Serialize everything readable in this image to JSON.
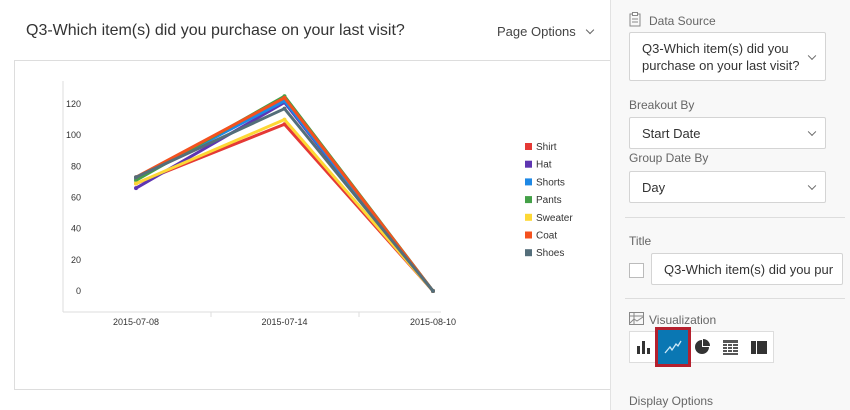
{
  "header": {
    "title": "Q3-Which item(s) did you purchase on your last visit?",
    "page_options": "Page Options"
  },
  "panel": {
    "data_source_label": "Data Source",
    "data_source_value_line1": "Q3-Which item(s) did you",
    "data_source_value_line2": "purchase on your last visit?",
    "breakout_label": "Breakout By",
    "breakout_value": "Start Date",
    "group_date_label": "Group Date By",
    "group_date_value": "Day",
    "title_label": "Title",
    "title_value": "Q3-Which item(s) did you pur",
    "title_checked": false,
    "visualization_label": "Visualization",
    "visualization_options": [
      "bar-chart-icon",
      "line-chart-icon",
      "pie-chart-icon",
      "table-icon",
      "gauge-icon"
    ],
    "visualization_selected": "line-chart-icon",
    "display_options_label": "Display Options",
    "accent": "#0a77b3"
  },
  "chart_data": {
    "type": "line",
    "categories": [
      "2015-07-08",
      "2015-07-14",
      "2015-08-10"
    ],
    "ylim": [
      0,
      130
    ],
    "yticks": [
      0,
      20,
      40,
      60,
      80,
      100,
      120
    ],
    "grid": false,
    "legend": "right",
    "series": [
      {
        "name": "Shirt",
        "color": "#e53935",
        "values": [
          69,
          107,
          0
        ]
      },
      {
        "name": "Hat",
        "color": "#5e35b1",
        "values": [
          66,
          121,
          0
        ]
      },
      {
        "name": "Shorts",
        "color": "#1e88e5",
        "values": [
          72,
          122,
          0
        ]
      },
      {
        "name": "Pants",
        "color": "#43a047",
        "values": [
          71,
          125,
          0
        ]
      },
      {
        "name": "Sweater",
        "color": "#fdd835",
        "values": [
          69,
          110,
          0
        ]
      },
      {
        "name": "Coat",
        "color": "#f4511e",
        "values": [
          73,
          124,
          0
        ]
      },
      {
        "name": "Shoes",
        "color": "#546e7a",
        "values": [
          73,
          117,
          0
        ]
      }
    ]
  }
}
